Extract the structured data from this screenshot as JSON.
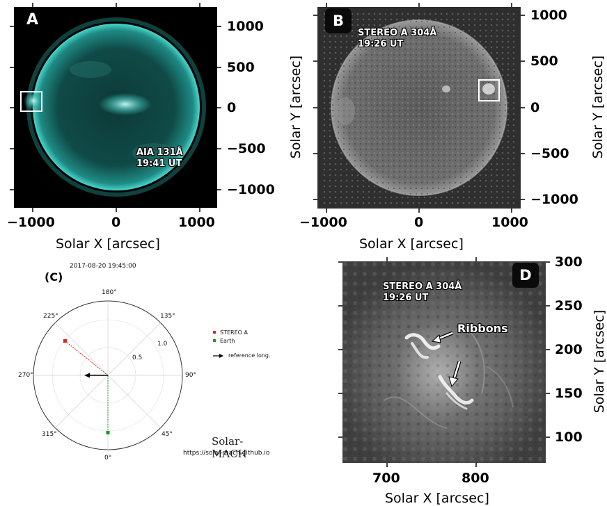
{
  "panel_a": {
    "label": "A",
    "annotation_line1": "AIA 131Å",
    "annotation_line2": "19:41 UT",
    "x_ticks": [
      "−1000",
      "0",
      "1000"
    ],
    "y_ticks": [
      "1000",
      "500",
      "0",
      "−500",
      "−1000"
    ],
    "xlabel": "Solar X [arcsec]",
    "colors": {
      "disk": "#2aa8a0",
      "background": "#000000"
    }
  },
  "panel_b": {
    "label": "B",
    "annotation_line1": "STEREO A 304Å",
    "annotation_line2": "19:26 UT",
    "x_ticks": [
      "−1000",
      "0",
      "1000"
    ],
    "y_ticks": [
      "1000",
      "500",
      "0",
      "−500",
      "−1000"
    ],
    "xlabel": "Solar X [arcsec]",
    "ylabel": "Solar Y [arcsec]",
    "left_ylabel": "Solar Y [arcsec]"
  },
  "panel_c": {
    "label": "(C)",
    "timestamp": "2017-08-20 19:45:00",
    "angle_labels": [
      "180°",
      "135°",
      "90°",
      "45°",
      "0°",
      "315°",
      "270°",
      "225°"
    ],
    "radial_labels": [
      "0.5",
      "1.0"
    ],
    "legend": [
      "STEREO A",
      "Earth",
      "reference long."
    ],
    "credit_title": "Solar-MACH",
    "credit_url": "https://solar-mach.github.io",
    "colors": {
      "stereo": "#dd2222",
      "earth": "#1a9a1a"
    }
  },
  "panel_d": {
    "label": "D",
    "annotation_line1": "STEREO A 304Å",
    "annotation_line2": "19:26 UT",
    "ribbons_label": "Ribbons",
    "x_ticks": [
      "700",
      "800"
    ],
    "y_ticks": [
      "300",
      "250",
      "200",
      "150",
      "100"
    ],
    "xlabel": "Solar X [arcsec]",
    "ylabel": "Solar Y [arcsec]"
  }
}
